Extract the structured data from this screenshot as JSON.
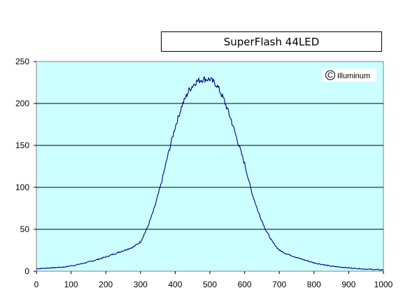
{
  "chart_data": {
    "type": "line",
    "title": "SuperFlash 44LED",
    "xlabel": "",
    "ylabel": "",
    "xlim": [
      0,
      1000
    ],
    "ylim": [
      0,
      250
    ],
    "x_ticks": [
      0,
      100,
      200,
      300,
      400,
      500,
      600,
      700,
      800,
      900,
      1000
    ],
    "y_ticks": [
      0,
      50,
      100,
      150,
      200,
      250
    ],
    "grid": "horizontal",
    "legend": "none",
    "watermark": "Illuminum",
    "colors": {
      "plot_background": "#ccffff",
      "line": "#000080",
      "grid": "#000000"
    },
    "series": [
      {
        "x": [
          0,
          40,
          80,
          120,
          160,
          200,
          240,
          280,
          300,
          320,
          340,
          360,
          380,
          400,
          420,
          440,
          460,
          480,
          500,
          520,
          540,
          560,
          580,
          600,
          620,
          640,
          660,
          680,
          700,
          720,
          740,
          760,
          800,
          850,
          900,
          950,
          1000
        ],
        "values": [
          3,
          4,
          5,
          8,
          12,
          17,
          23,
          29,
          35,
          52,
          75,
          105,
          140,
          172,
          198,
          216,
          226,
          229,
          229,
          222,
          205,
          182,
          155,
          128,
          95,
          70,
          50,
          35,
          25,
          21,
          18,
          15,
          10,
          6,
          4,
          2.5,
          1.5
        ]
      }
    ]
  }
}
